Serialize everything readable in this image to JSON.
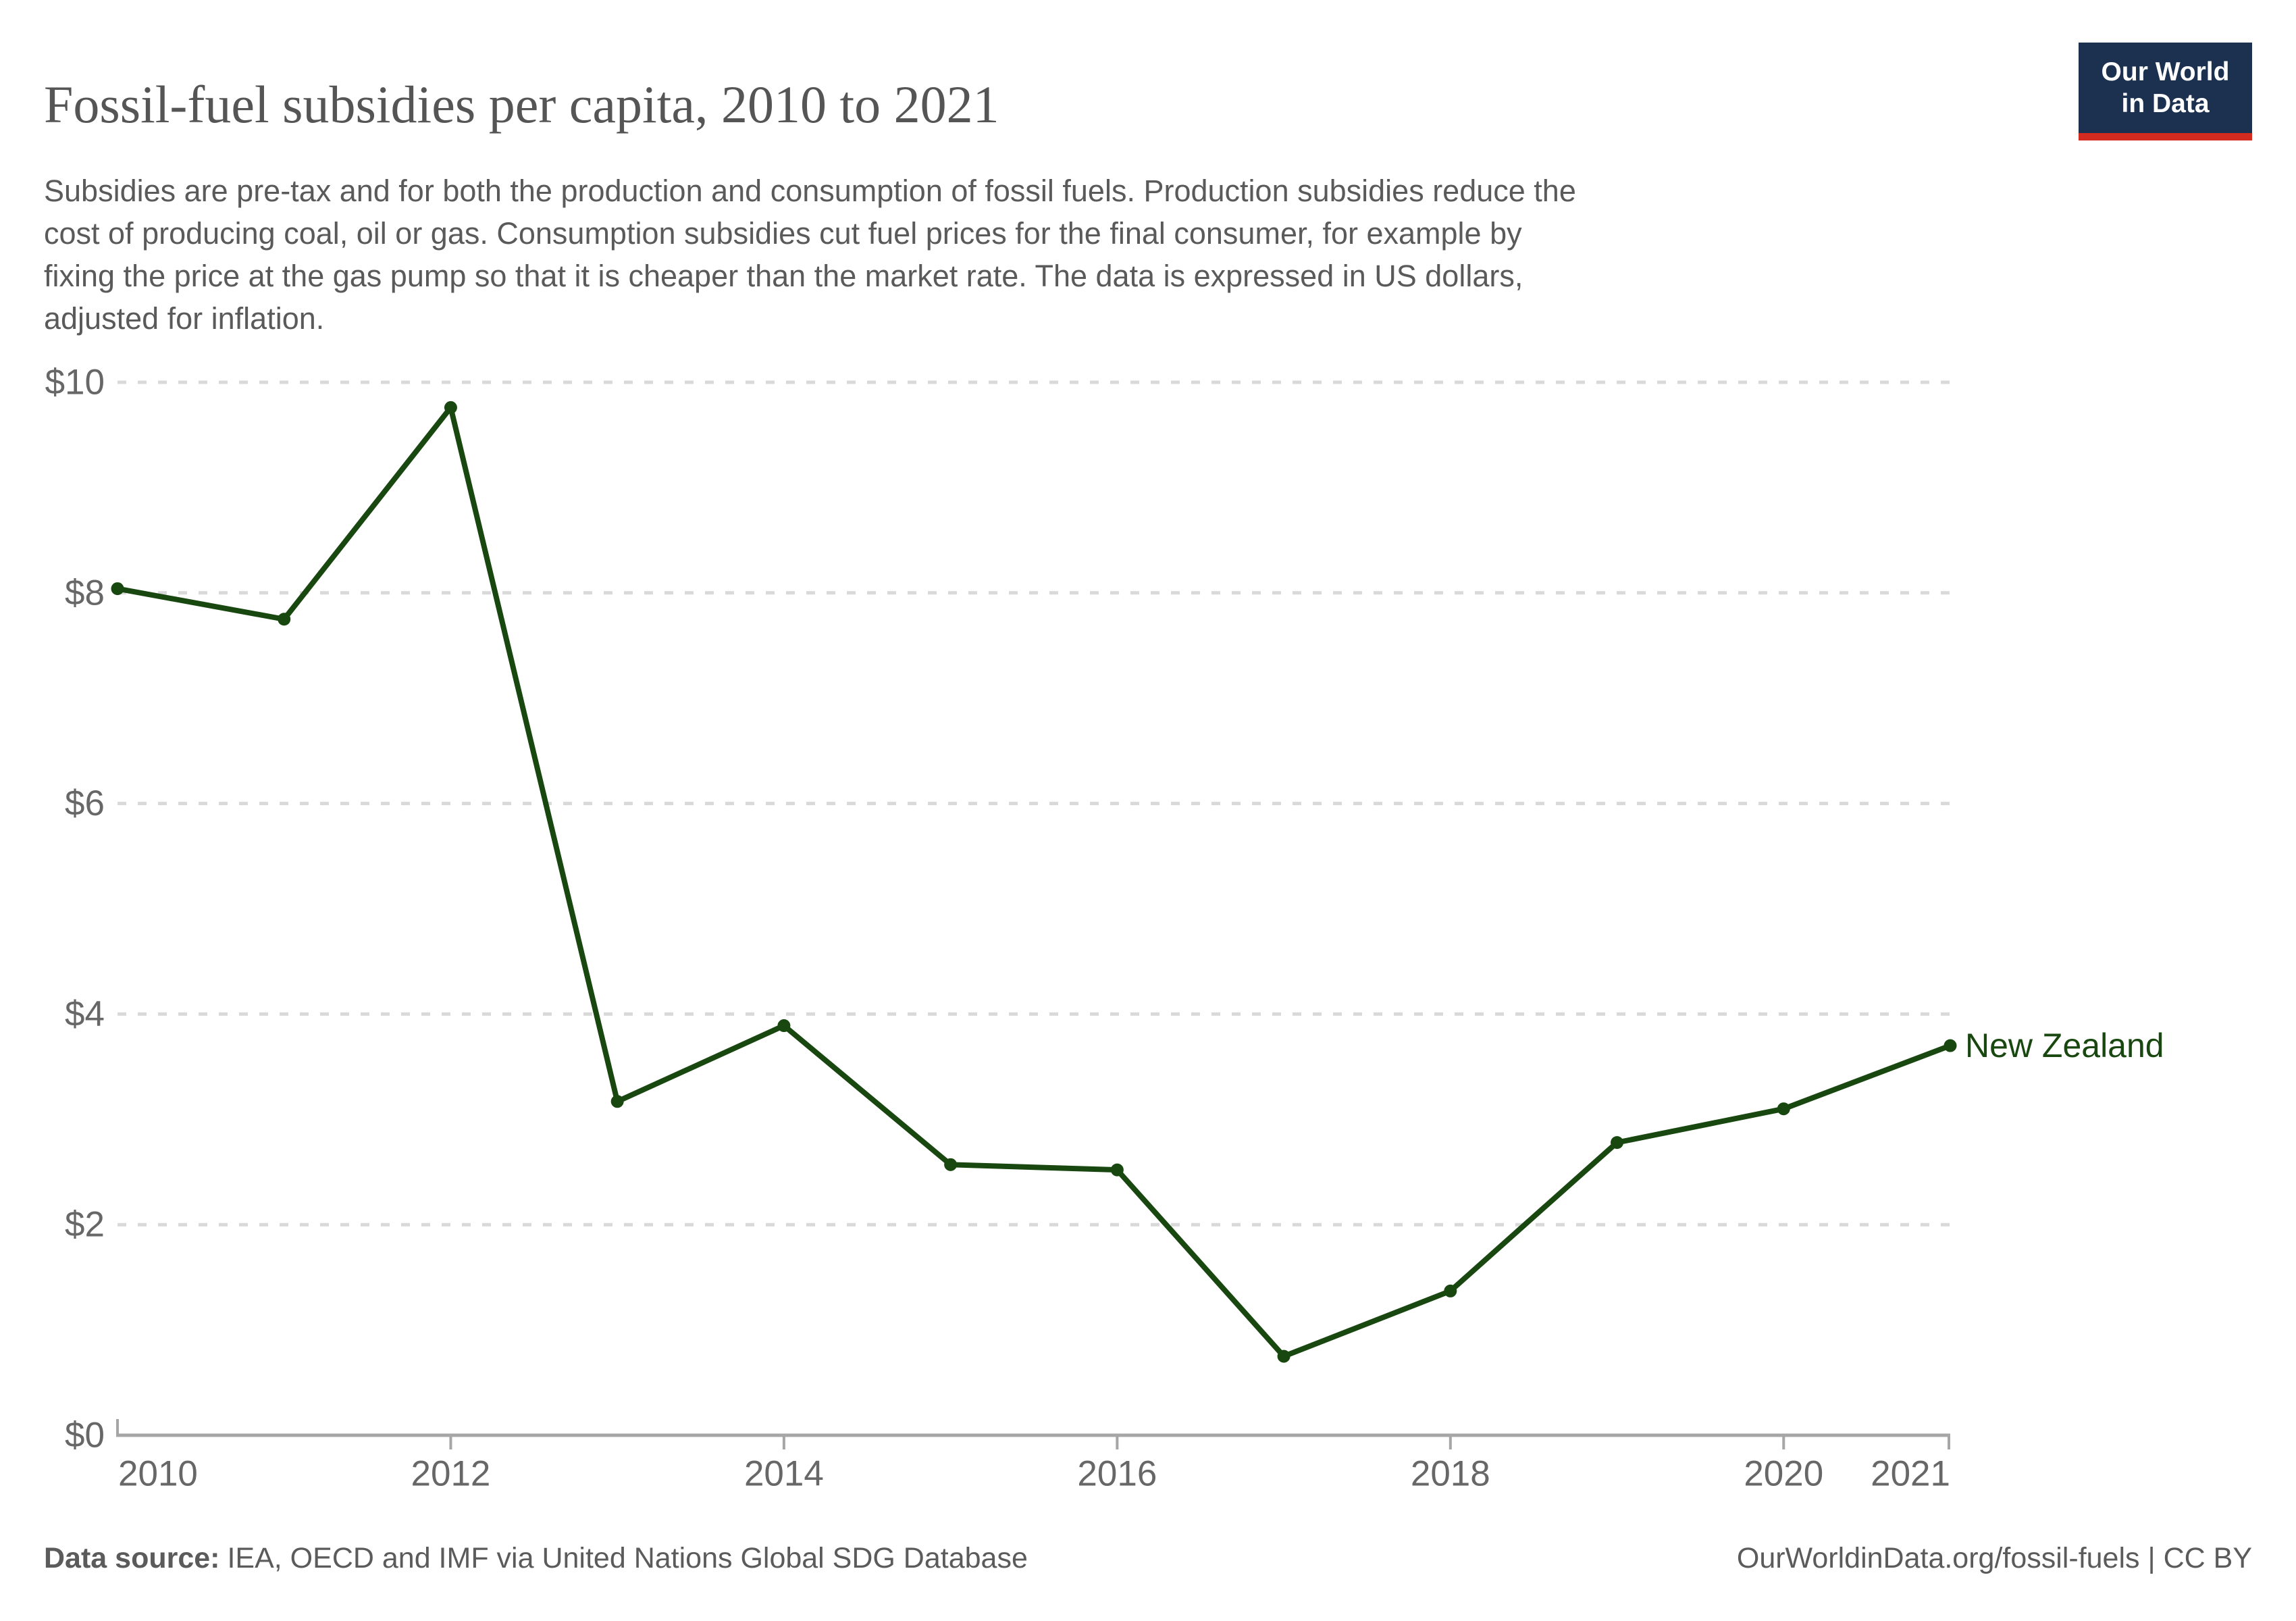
{
  "header": {
    "title": "Fossil-fuel subsidies per capita, 2010 to 2021",
    "subtitle": "Subsidies are pre-tax and for both the production and consumption of fossil fuels. Production subsidies reduce the cost of producing coal, oil or gas. Consumption subsidies cut fuel prices for the final consumer, for example by fixing the price at the gas pump so that it is cheaper than the market rate. The data is expressed in US dollars, adjusted for inflation.",
    "subtitle_lines": [
      "Subsidies are pre-tax and for both the production and consumption of fossil fuels. Production subsidies reduce the",
      "cost of producing coal, oil or gas. Consumption subsidies cut fuel prices for the final consumer, for example by",
      "fixing the price at the gas pump so that it is cheaper than the market rate. The data is expressed in US dollars,",
      "adjusted for inflation."
    ]
  },
  "logo": {
    "line1": "Our World",
    "line2": "in Data"
  },
  "chart_data": {
    "type": "line",
    "title": "Fossil-fuel subsidies per capita, 2010 to 2021",
    "x": [
      2010,
      2011,
      2012,
      2013,
      2014,
      2015,
      2016,
      2017,
      2018,
      2019,
      2020,
      2021
    ],
    "series": [
      {
        "name": "New Zealand",
        "color": "#18470f",
        "values": [
          8.04,
          7.75,
          9.76,
          3.17,
          3.89,
          2.57,
          2.52,
          0.75,
          1.37,
          2.78,
          3.1,
          3.7
        ]
      }
    ],
    "ylim": [
      0,
      10
    ],
    "yticks": [
      {
        "value": 0,
        "label": "$0"
      },
      {
        "value": 2,
        "label": "$2"
      },
      {
        "value": 4,
        "label": "$4"
      },
      {
        "value": 6,
        "label": "$6"
      },
      {
        "value": 8,
        "label": "$8"
      },
      {
        "value": 10,
        "label": "$10"
      }
    ],
    "xticks": [
      2010,
      2012,
      2014,
      2016,
      2018,
      2020,
      2021
    ],
    "xlabel": "",
    "ylabel": "",
    "grid": "horizontal-dashed",
    "legend_position": "entity-label-at-line-end"
  },
  "footer": {
    "source_label": "Data source:",
    "source_text": "IEA, OECD and IMF via United Nations Global SDG Database",
    "right_text": "OurWorldinData.org/fossil-fuels | CC BY"
  },
  "colors": {
    "line": "#18470f",
    "grid": "#d9d9d9",
    "axis": "#a6a6a6",
    "tick_label": "#676767",
    "title": "#555555",
    "subtitle": "#5a5a5a",
    "footer": "#5b5b5b",
    "logo_bg": "#1c3150",
    "logo_bar": "#d42b21",
    "background": "#ffffff"
  }
}
